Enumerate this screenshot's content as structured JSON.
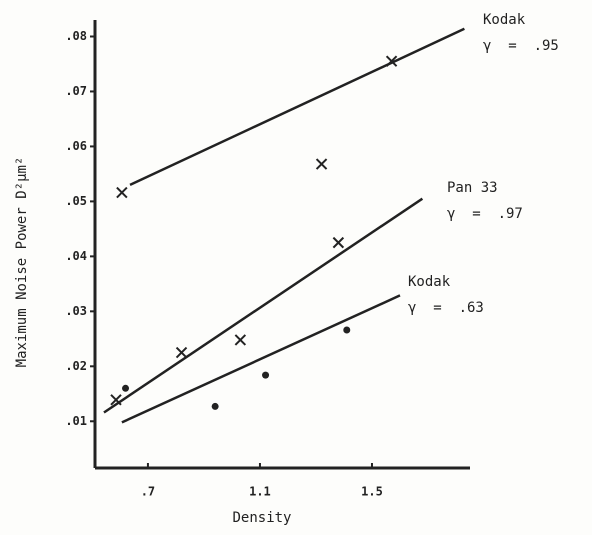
{
  "chart_data": {
    "type": "scatter",
    "xlabel": "Density",
    "ylabel": "Maximum Noise Power D²μm²",
    "xlim": [
      0.511,
      1.85
    ],
    "ylim": [
      0.0015,
      0.083
    ],
    "xticks": [
      {
        "value": 0.7,
        "label": ".7"
      },
      1.1,
      1.5
    ],
    "yticks": [
      {
        "value": 0.01,
        "label": ".01"
      },
      {
        "value": 0.02,
        "label": ".02"
      },
      {
        "value": 0.03,
        "label": ".03"
      },
      {
        "value": 0.04,
        "label": ".04"
      },
      {
        "value": 0.05,
        "label": ".05"
      },
      {
        "value": 0.06,
        "label": ".06"
      },
      {
        "value": 0.07,
        "label": ".07"
      },
      {
        "value": 0.08,
        "label": ".08"
      }
    ],
    "series": [
      {
        "name": "Kodak",
        "gamma": "γ  =  .95",
        "marker": "x",
        "color": "#222",
        "x": [
          0.607,
          1.32,
          1.57
        ],
        "y": [
          0.0516,
          0.0568,
          0.0755
        ],
        "fit_x": [
          0.636,
          1.83
        ],
        "fit_y": [
          0.053,
          0.0814
        ]
      },
      {
        "name": "Pan 33",
        "gamma": "γ  =  .97",
        "marker": "x",
        "color": "#222",
        "x": [
          0.586,
          0.82,
          1.03,
          1.38
        ],
        "y": [
          0.0139,
          0.0225,
          0.0248,
          0.0425
        ],
        "fit_x": [
          0.543,
          1.68
        ],
        "fit_y": [
          0.0116,
          0.0505
        ]
      },
      {
        "name": "Kodak",
        "gamma": "γ  =  .63",
        "marker": "dot",
        "color": "#222",
        "x": [
          0.62,
          0.94,
          1.12,
          1.41
        ],
        "y": [
          0.016,
          0.0127,
          0.0184,
          0.0266
        ],
        "fit_x": [
          0.607,
          1.6
        ],
        "fit_y": [
          0.0098,
          0.0329
        ]
      }
    ]
  }
}
